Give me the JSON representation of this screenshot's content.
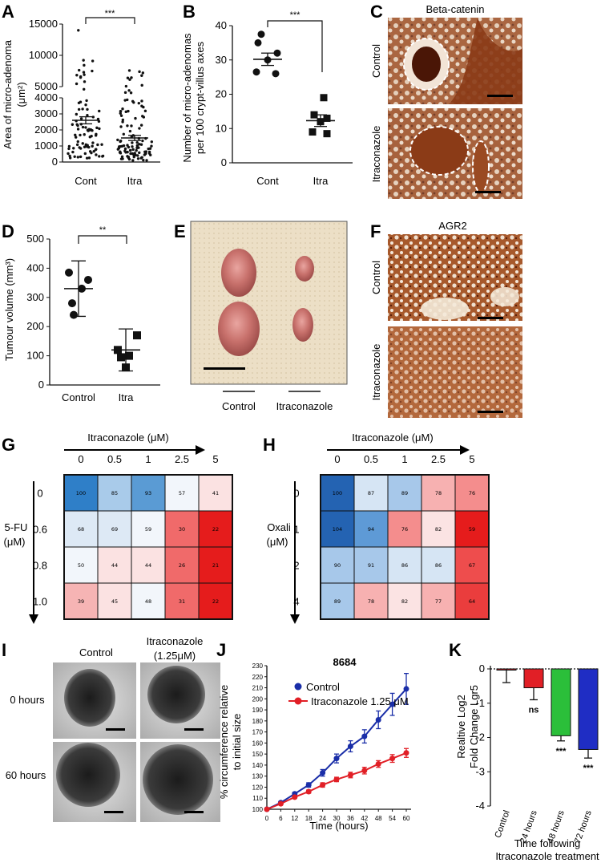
{
  "figure": {
    "panels": {
      "A": "A",
      "B": "B",
      "C": "C",
      "D": "D",
      "E": "E",
      "F": "F",
      "G": "G",
      "H": "H",
      "I": "I",
      "J": "J",
      "K": "K"
    }
  },
  "chart_data": [
    {
      "id": "A",
      "type": "scatter",
      "ylabel": "Area of micro-adenoma (μm²)",
      "ylabel_line1": "Area of micro-adenoma",
      "ylabel_line2": "(μm²)",
      "categories": [
        "Cont",
        "Itra"
      ],
      "y_ticks_lower": [
        "0",
        "1000",
        "2000",
        "3000",
        "4000"
      ],
      "y_ticks_upper": [
        "5000",
        "10000",
        "15000"
      ],
      "mean": [
        2600,
        1500
      ],
      "sem": [
        220,
        160
      ],
      "significance": "***"
    },
    {
      "id": "B",
      "type": "scatter",
      "ylabel": "Number of micro-adenomas per 100 crypt-villus axes",
      "ylabel_line1": "Number of micro-adenomas",
      "ylabel_line2": "per 100 crypt-villus axes",
      "categories": [
        "Cont",
        "Itra"
      ],
      "ylim": [
        0,
        40
      ],
      "y_ticks": [
        "0",
        "10",
        "20",
        "30",
        "40"
      ],
      "series": [
        {
          "values": [
            37.5,
            35,
            32,
            30,
            26.5,
            26
          ]
        },
        {
          "values": [
            19,
            14,
            13,
            12,
            9,
            8.5
          ]
        }
      ],
      "mean": [
        30.2,
        12.3
      ],
      "sem": [
        1.8,
        1.7
      ],
      "significance": "***"
    },
    {
      "id": "D",
      "type": "scatter",
      "ylabel": "Tumour volume (mm³)",
      "categories": [
        "Control",
        "Itra"
      ],
      "ylim": [
        0,
        500
      ],
      "y_ticks": [
        "0",
        "100",
        "200",
        "300",
        "400",
        "500"
      ],
      "series": [
        {
          "values": [
            385,
            360,
            330,
            280,
            240
          ]
        },
        {
          "values": [
            170,
            120,
            100,
            95,
            60
          ]
        }
      ],
      "mean": [
        330,
        120
      ],
      "error": [
        95,
        72
      ],
      "significance": "**"
    },
    {
      "id": "G",
      "type": "heatmap",
      "col_title": "Itraconazole (μM)",
      "row_title_line1": "5-FU",
      "row_title_line2": "(μM)",
      "columns": [
        "0",
        "0.5",
        "1",
        "2.5",
        "5"
      ],
      "rows": [
        "0",
        "0.6",
        "0.8",
        "1.0"
      ],
      "values": [
        [
          100,
          85,
          93,
          57,
          41
        ],
        [
          68,
          69,
          59,
          30,
          22
        ],
        [
          50,
          44,
          44,
          26,
          21
        ],
        [
          39,
          45,
          48,
          31,
          22
        ]
      ]
    },
    {
      "id": "H",
      "type": "heatmap",
      "col_title": "Itraconazole (μM)",
      "row_title_line1": "Oxali",
      "row_title_line2": "(μM)",
      "columns": [
        "0",
        "0.5",
        "1",
        "2.5",
        "5"
      ],
      "rows": [
        "0",
        "1",
        "2",
        "4"
      ],
      "values": [
        [
          100,
          87,
          89,
          78,
          76
        ],
        [
          104,
          94,
          76,
          82,
          59
        ],
        [
          90,
          91,
          86,
          86,
          67
        ],
        [
          89,
          78,
          82,
          77,
          64
        ]
      ]
    },
    {
      "id": "J",
      "type": "line",
      "title": "8684",
      "xlabel": "Time (hours)",
      "ylabel": "% circumference relative to initial size",
      "ylabel_line1": "% circumference relative",
      "ylabel_line2": "to initial size",
      "xlim": [
        0,
        60
      ],
      "ylim": [
        100,
        230
      ],
      "x": [
        0,
        6,
        12,
        18,
        24,
        30,
        36,
        42,
        48,
        54,
        60
      ],
      "x_ticks": [
        "0",
        "6",
        "12",
        "18",
        "24",
        "30",
        "36",
        "42",
        "48",
        "54",
        "60"
      ],
      "y_ticks": [
        "100",
        "110",
        "120",
        "130",
        "140",
        "150",
        "160",
        "170",
        "180",
        "190",
        "200",
        "210",
        "220",
        "230"
      ],
      "legend_position": "top-left",
      "series": [
        {
          "name": "Control",
          "color": "#1a2ea8",
          "values": [
            100,
            106,
            114,
            122,
            133,
            146,
            157,
            166,
            181,
            195,
            209
          ],
          "err": [
            0,
            1,
            1.5,
            2,
            3,
            4,
            5,
            6,
            8,
            10,
            14
          ]
        },
        {
          "name": "Itraconazole 1.25 μM",
          "color": "#e11f26",
          "values": [
            100,
            105,
            111,
            116,
            122,
            127,
            131,
            135,
            141,
            146,
            151
          ],
          "err": [
            0,
            1,
            1,
            1.5,
            2,
            2,
            2.5,
            3,
            3,
            3.5,
            4
          ]
        }
      ]
    },
    {
      "id": "K",
      "type": "bar",
      "ylabel": "Realtive Log2 Fold Change Lgr5",
      "ylabel_line1": "Realtive Log2",
      "ylabel_line2": "Fold Change Lgr5",
      "xlabel_line1": "Time following",
      "xlabel_line2": "Itraconazole treatment",
      "ylim": [
        -4,
        0
      ],
      "y_ticks": [
        "0",
        "-1",
        "-2",
        "-3",
        "-4"
      ],
      "categories": [
        "Control",
        "24 hours",
        "48 hours",
        "72 hours"
      ],
      "values": [
        0,
        -0.55,
        -1.95,
        -2.35
      ],
      "err": [
        0.4,
        0.35,
        0.15,
        0.25
      ],
      "colors": [
        "#e11f26",
        "#e11f26",
        "#2bbf3a",
        "#1f2dc4"
      ],
      "annotations": [
        "",
        "ns",
        "***",
        "***"
      ]
    }
  ],
  "images": {
    "C": {
      "title": "Beta-catenin",
      "rows": [
        "Control",
        "Itraconazole"
      ]
    },
    "E": {
      "labels": [
        "Control",
        "Itraconazole"
      ]
    },
    "F": {
      "title": "AGR2",
      "rows": [
        "Control",
        "Itraconazole"
      ]
    },
    "I": {
      "col_control": "Control",
      "col_itra_line1": "Itraconazole",
      "col_itra_line2": "(1.25μM)",
      "rows": [
        "0 hours",
        "60 hours"
      ]
    }
  }
}
